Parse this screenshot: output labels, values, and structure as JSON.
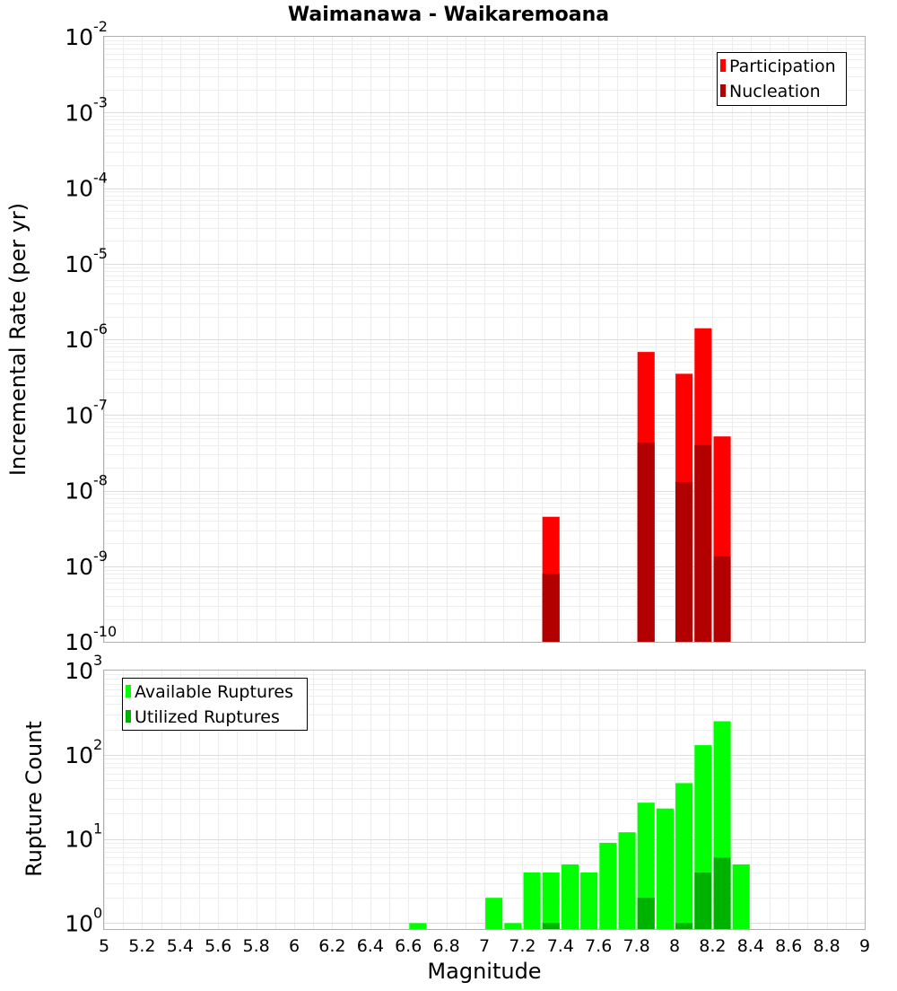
{
  "chart_data": [
    {
      "type": "bar",
      "scale": "log",
      "title": "Waimanawa - Waikaremoana",
      "xlabel": "",
      "ylabel": "Incremental Rate (per yr)",
      "xlim": [
        5,
        9
      ],
      "ylim_exponents": [
        -10,
        -2
      ],
      "bar_width": 0.09,
      "series": [
        {
          "name": "Participation",
          "color": "#ff0000",
          "points": [
            [
              7.35,
              4.5e-09
            ],
            [
              7.85,
              6.8e-07
            ],
            [
              8.05,
              3.5e-07
            ],
            [
              8.15,
              1.4e-06
            ],
            [
              8.25,
              5.2e-08
            ]
          ]
        },
        {
          "name": "Nucleation",
          "color": "#b20000",
          "points": [
            [
              7.35,
              8e-10
            ],
            [
              7.85,
              4.3e-08
            ],
            [
              8.05,
              1.3e-08
            ],
            [
              8.15,
              4e-08
            ],
            [
              8.25,
              1.35e-09
            ]
          ]
        }
      ],
      "legend_position": "top-right"
    },
    {
      "type": "bar",
      "scale": "log",
      "title": "",
      "xlabel": "Magnitude",
      "ylabel": "Rupture Count",
      "xlim": [
        5,
        9
      ],
      "ylim_exponents": [
        0,
        3
      ],
      "bar_width": 0.09,
      "series": [
        {
          "name": "Available Ruptures",
          "color": "#00ff00",
          "points": [
            [
              6.65,
              1
            ],
            [
              7.05,
              2
            ],
            [
              7.15,
              1
            ],
            [
              7.25,
              4
            ],
            [
              7.35,
              4
            ],
            [
              7.45,
              5
            ],
            [
              7.55,
              4
            ],
            [
              7.65,
              9
            ],
            [
              7.75,
              12
            ],
            [
              7.85,
              27
            ],
            [
              7.95,
              23
            ],
            [
              8.05,
              46
            ],
            [
              8.15,
              130
            ],
            [
              8.25,
              250
            ],
            [
              8.35,
              5
            ]
          ]
        },
        {
          "name": "Utilized Ruptures",
          "color": "#00b200",
          "points": [
            [
              7.35,
              1
            ],
            [
              7.85,
              2
            ],
            [
              8.05,
              1
            ],
            [
              8.15,
              4
            ],
            [
              8.25,
              6
            ]
          ]
        }
      ],
      "legend_position": "top-left"
    }
  ],
  "x_ticks": [
    "5",
    "5.2",
    "5.4",
    "5.6",
    "5.8",
    "6",
    "6.2",
    "6.4",
    "6.6",
    "6.8",
    "7",
    "7.2",
    "7.4",
    "7.6",
    "7.8",
    "8",
    "8.2",
    "8.4",
    "8.6",
    "8.8",
    "9"
  ],
  "top_y_ticks": [
    "-10",
    "-9",
    "-8",
    "-7",
    "-6",
    "-5",
    "-4",
    "-3",
    "-2"
  ],
  "bottom_y_ticks": [
    "0",
    "1",
    "2",
    "3"
  ],
  "y_tick_base": "10"
}
